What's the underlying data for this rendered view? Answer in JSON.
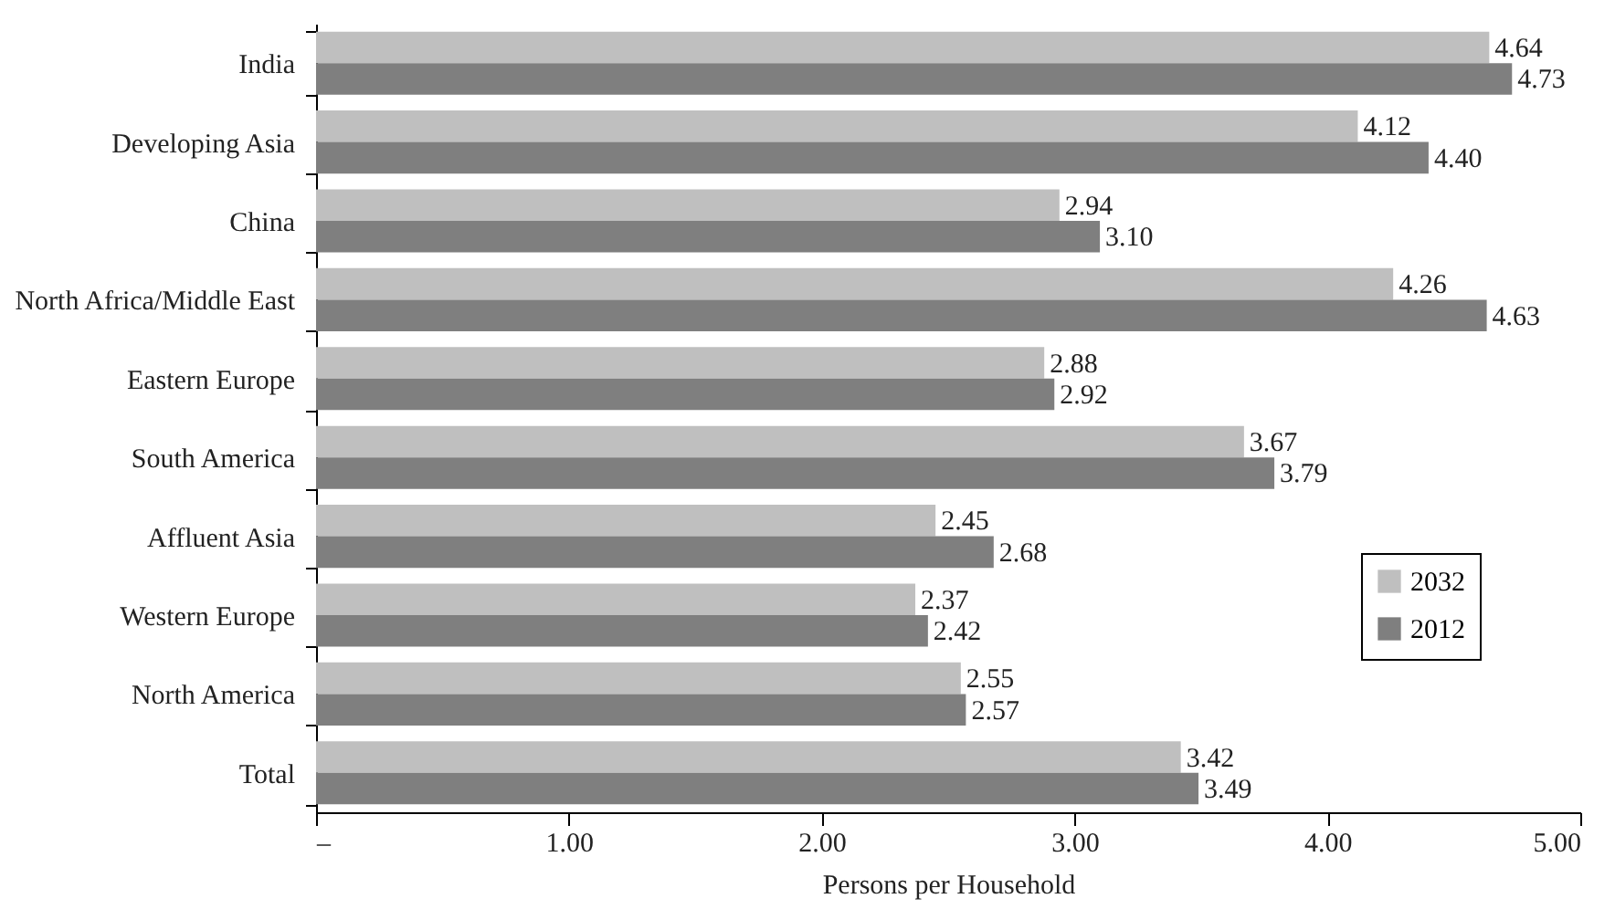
{
  "chart_data": {
    "type": "bar",
    "orientation": "horizontal",
    "xlabel": "Persons per Household",
    "categories": [
      "India",
      "Developing Asia",
      "China",
      "North Africa/Middle East",
      "Eastern Europe",
      "South America",
      "Affluent Asia",
      "Western Europe",
      "North America",
      "Total"
    ],
    "series": [
      {
        "name": "2032",
        "color": "#bfbfbf",
        "values": [
          4.64,
          4.12,
          2.94,
          4.26,
          2.88,
          3.67,
          2.45,
          2.37,
          2.55,
          3.42
        ],
        "value_labels": [
          "4.64",
          "4.12",
          "2.94",
          "4.26",
          "2.88",
          "3.67",
          "2.45",
          "2.37",
          "2.55",
          "3.42"
        ]
      },
      {
        "name": "2012",
        "color": "#7f7f7f",
        "values": [
          4.73,
          4.4,
          3.1,
          4.63,
          2.92,
          3.79,
          2.68,
          2.42,
          2.57,
          3.49
        ],
        "value_labels": [
          "4.73",
          "4.40",
          "3.10",
          "4.63",
          "2.92",
          "3.79",
          "2.68",
          "2.42",
          "2.57",
          "3.49"
        ]
      }
    ],
    "xlim": [
      0,
      5
    ],
    "xticks": [
      {
        "value": 0,
        "label": "–"
      },
      {
        "value": 1,
        "label": "1.00"
      },
      {
        "value": 2,
        "label": "2.00"
      },
      {
        "value": 3,
        "label": "3.00"
      },
      {
        "value": 4,
        "label": "4.00"
      },
      {
        "value": 5,
        "label": "5.00"
      }
    ],
    "legend": "right",
    "grid": false
  }
}
